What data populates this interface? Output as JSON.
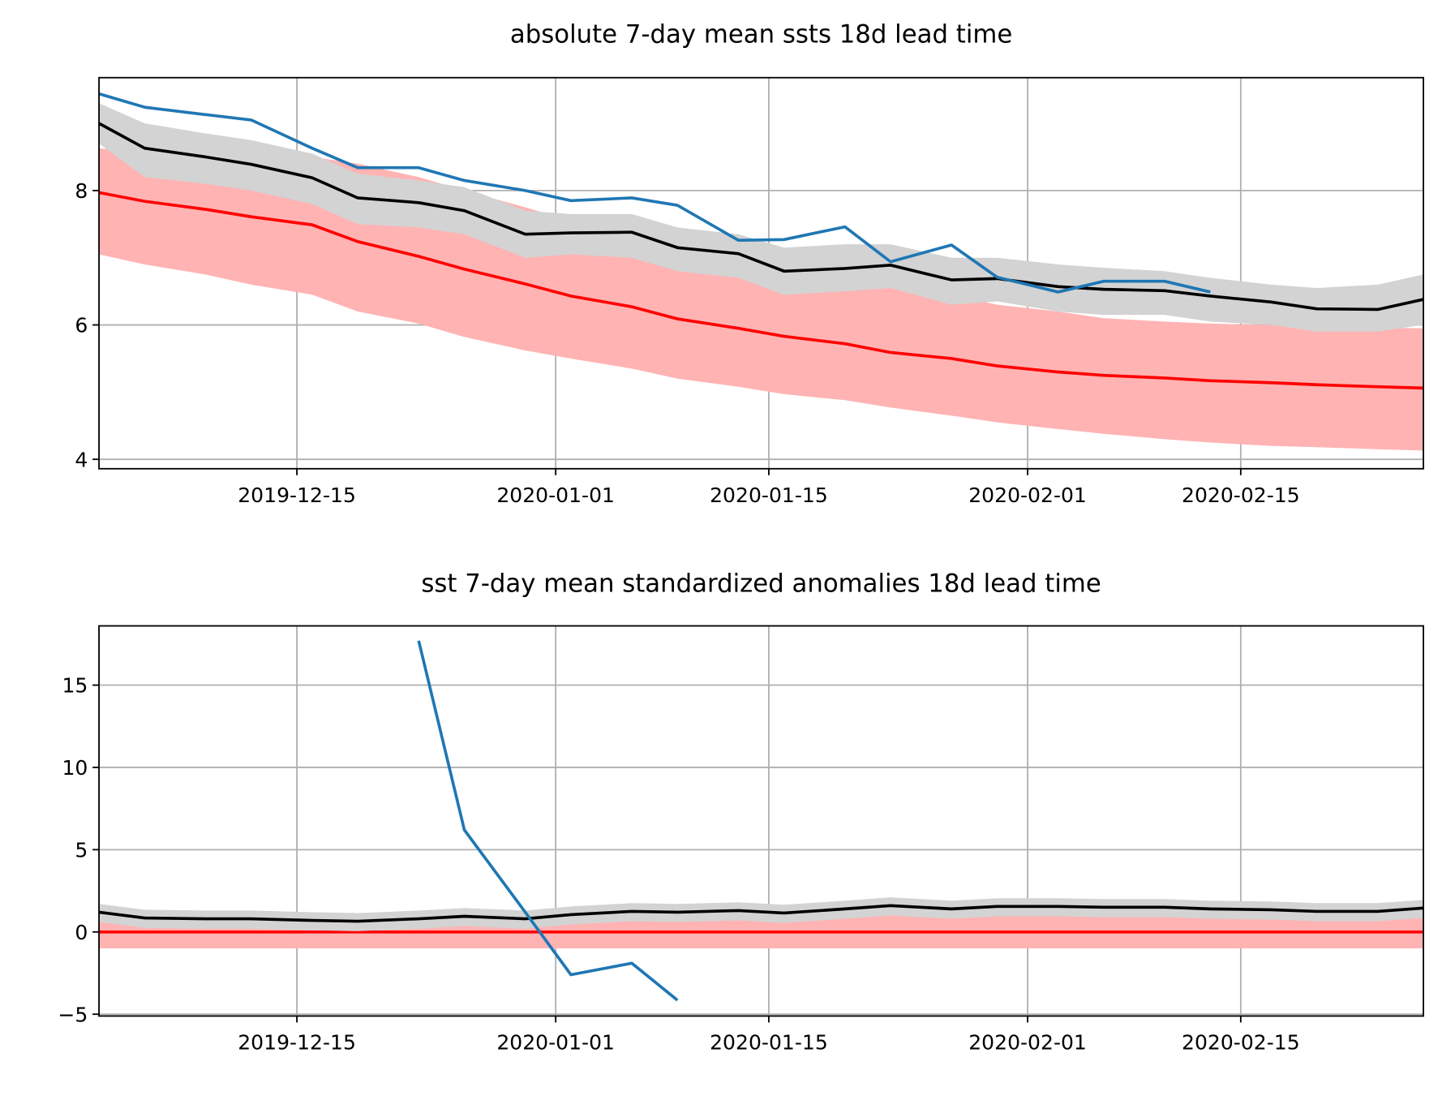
{
  "chart_data": [
    {
      "type": "line",
      "title": "absolute 7-day mean ssts 18d lead time",
      "x": [
        "2019-12-02",
        "2019-12-05",
        "2019-12-09",
        "2019-12-12",
        "2019-12-16",
        "2019-12-19",
        "2019-12-23",
        "2019-12-26",
        "2019-12-30",
        "2020-01-02",
        "2020-01-06",
        "2020-01-09",
        "2020-01-13",
        "2020-01-16",
        "2020-01-20",
        "2020-01-23",
        "2020-01-27",
        "2020-01-30",
        "2020-02-03",
        "2020-02-06",
        "2020-02-10",
        "2020-02-13",
        "2020-02-17",
        "2020-02-20",
        "2020-02-24",
        "2020-02-27"
      ],
      "xlim": [
        "2019-12-02",
        "2020-02-27"
      ],
      "xticks": [
        "2019-12-15",
        "2020-01-01",
        "2020-01-15",
        "2020-02-01",
        "2020-02-15"
      ],
      "ylim": [
        3.86,
        9.68
      ],
      "yticks": [
        4,
        6,
        8
      ],
      "grid": true,
      "bands": [
        {
          "color": "#ffb3b3",
          "upper": [
            8.63,
            8.55,
            8.55,
            8.55,
            8.5,
            8.4,
            8.2,
            8.0,
            7.75,
            7.55,
            7.4,
            7.2,
            7.05,
            6.9,
            6.75,
            6.6,
            6.45,
            6.3,
            6.2,
            6.1,
            6.05,
            6.02,
            6.0,
            5.98,
            5.96,
            5.95
          ],
          "lower": [
            7.05,
            6.9,
            6.75,
            6.6,
            6.45,
            6.2,
            6.02,
            5.82,
            5.62,
            5.5,
            5.35,
            5.2,
            5.08,
            4.97,
            4.88,
            4.77,
            4.65,
            4.55,
            4.45,
            4.38,
            4.3,
            4.25,
            4.2,
            4.18,
            4.15,
            4.13
          ]
        },
        {
          "color": "#d3d3d3",
          "upper": [
            9.3,
            9.0,
            8.85,
            8.75,
            8.55,
            8.25,
            8.15,
            8.05,
            7.7,
            7.65,
            7.65,
            7.45,
            7.35,
            7.15,
            7.2,
            7.2,
            7.0,
            7.0,
            6.9,
            6.85,
            6.8,
            6.7,
            6.6,
            6.55,
            6.6,
            6.75
          ],
          "lower": [
            8.7,
            8.2,
            8.1,
            8.0,
            7.8,
            7.5,
            7.45,
            7.35,
            7.0,
            7.05,
            7.0,
            6.8,
            6.7,
            6.45,
            6.5,
            6.55,
            6.3,
            6.35,
            6.2,
            6.15,
            6.15,
            6.05,
            6.0,
            5.9,
            5.9,
            6.0
          ]
        }
      ],
      "series": [
        {
          "color": "#ff0000",
          "values": [
            7.97,
            7.84,
            7.72,
            7.61,
            7.49,
            7.24,
            7.02,
            6.83,
            6.61,
            6.43,
            6.27,
            6.09,
            5.95,
            5.83,
            5.72,
            5.59,
            5.5,
            5.39,
            5.3,
            5.25,
            5.21,
            5.17,
            5.14,
            5.11,
            5.08,
            5.06
          ]
        },
        {
          "color": "#000000",
          "values": [
            9.0,
            8.63,
            8.5,
            8.39,
            8.19,
            7.89,
            7.82,
            7.7,
            7.35,
            7.37,
            7.38,
            7.15,
            7.06,
            6.8,
            6.84,
            6.89,
            6.67,
            6.69,
            6.57,
            6.53,
            6.51,
            6.43,
            6.34,
            6.24,
            6.23,
            6.38
          ]
        },
        {
          "color": "#1f77b4",
          "values": [
            9.44,
            9.24,
            9.13,
            9.05,
            8.63,
            8.34,
            8.34,
            8.15,
            8.0,
            7.85,
            7.89,
            7.78,
            7.26,
            7.27,
            7.46,
            6.94,
            7.19,
            6.71,
            6.49,
            6.65,
            6.65,
            6.49,
            null,
            null,
            null,
            null
          ]
        }
      ]
    },
    {
      "type": "line",
      "title": "sst 7-day mean standardized anomalies 18d lead time",
      "x": [
        "2019-12-02",
        "2019-12-05",
        "2019-12-09",
        "2019-12-12",
        "2019-12-16",
        "2019-12-19",
        "2019-12-23",
        "2019-12-26",
        "2019-12-30",
        "2020-01-02",
        "2020-01-06",
        "2020-01-09",
        "2020-01-13",
        "2020-01-16",
        "2020-01-20",
        "2020-01-23",
        "2020-01-27",
        "2020-01-30",
        "2020-02-03",
        "2020-02-06",
        "2020-02-10",
        "2020-02-13",
        "2020-02-17",
        "2020-02-20",
        "2020-02-24",
        "2020-02-27"
      ],
      "xlim": [
        "2019-12-02",
        "2020-02-27"
      ],
      "xticks": [
        "2019-12-15",
        "2020-01-01",
        "2020-01-15",
        "2020-02-01",
        "2020-02-15"
      ],
      "ylim": [
        -5.11,
        18.6
      ],
      "yticks": [
        {
          "value": -5,
          "label": "−5"
        },
        0,
        5,
        10,
        15
      ],
      "grid": true,
      "bands": [
        {
          "color": "#ffb3b3",
          "upper": [
            1,
            1,
            1,
            1,
            1,
            1,
            1,
            1,
            1,
            1,
            1,
            1,
            1,
            1,
            1,
            1,
            1,
            1,
            1,
            1,
            1,
            1,
            1,
            1,
            1,
            1
          ],
          "lower": [
            -1,
            -1,
            -1,
            -1,
            -1,
            -1,
            -1,
            -1,
            -1,
            -1,
            -1,
            -1,
            -1,
            -1,
            -1,
            -1,
            -1,
            -1,
            -1,
            -1,
            -1,
            -1,
            -1,
            -1,
            -1,
            -1
          ]
        },
        {
          "color": "#d3d3d3",
          "upper": [
            1.7,
            1.35,
            1.3,
            1.3,
            1.2,
            1.15,
            1.3,
            1.45,
            1.3,
            1.55,
            1.75,
            1.7,
            1.8,
            1.65,
            1.9,
            2.1,
            1.9,
            2.05,
            2.05,
            2.0,
            2.0,
            1.9,
            1.85,
            1.75,
            1.75,
            1.95
          ],
          "lower": [
            0.6,
            0.25,
            0.2,
            0.2,
            0.1,
            0.05,
            0.2,
            0.35,
            0.2,
            0.45,
            0.65,
            0.6,
            0.7,
            0.55,
            0.8,
            1.0,
            0.8,
            0.95,
            0.95,
            0.9,
            0.9,
            0.8,
            0.75,
            0.65,
            0.65,
            0.85
          ]
        }
      ],
      "series": [
        {
          "color": "#ff0000",
          "values": [
            0,
            0,
            0,
            0,
            0,
            0,
            0,
            0,
            0,
            0,
            0,
            0,
            0,
            0,
            0,
            0,
            0,
            0,
            0,
            0,
            0,
            0,
            0,
            0,
            0,
            0
          ]
        },
        {
          "color": "#000000",
          "values": [
            1.2,
            0.85,
            0.8,
            0.8,
            0.7,
            0.65,
            0.8,
            0.95,
            0.8,
            1.05,
            1.25,
            1.2,
            1.3,
            1.15,
            1.4,
            1.6,
            1.4,
            1.55,
            1.55,
            1.5,
            1.5,
            1.4,
            1.35,
            1.25,
            1.25,
            1.45
          ]
        },
        {
          "color": "#1f77b4",
          "values": [
            null,
            null,
            null,
            null,
            null,
            null,
            17.7,
            6.2,
            1.2,
            -2.6,
            -1.9,
            -4.15,
            null,
            null,
            null,
            null,
            null,
            null,
            null,
            null,
            null,
            null,
            null,
            null,
            null,
            null
          ]
        }
      ]
    }
  ]
}
